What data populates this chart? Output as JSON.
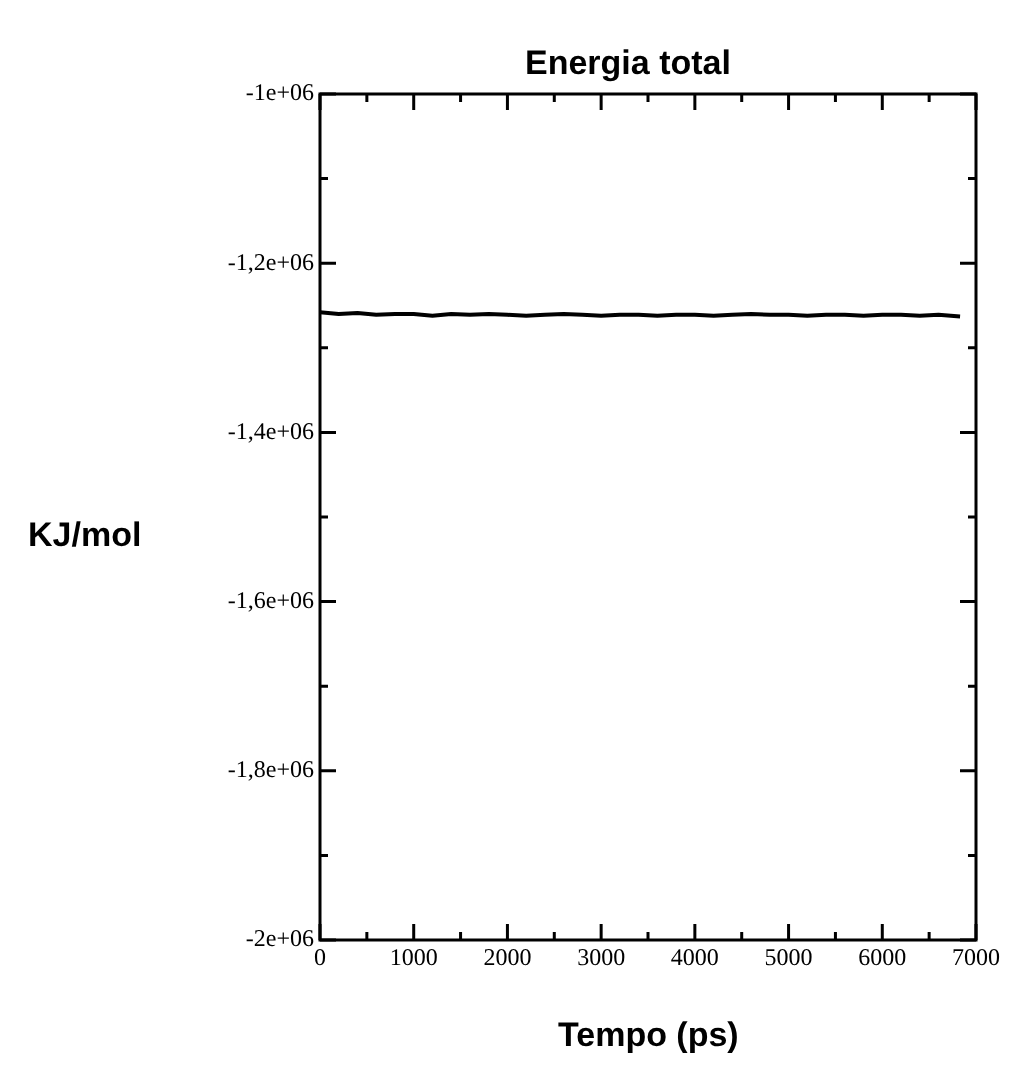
{
  "chart_data": {
    "type": "line",
    "title": "Energia total",
    "xlabel": "Tempo (ps)",
    "ylabel": "KJ/mol",
    "x": [
      0,
      200,
      400,
      600,
      800,
      1000,
      1200,
      1400,
      1600,
      1800,
      2000,
      2200,
      2400,
      2600,
      2800,
      3000,
      3200,
      3400,
      3600,
      3800,
      4000,
      4200,
      4400,
      4600,
      4800,
      5000,
      5200,
      5400,
      5600,
      5800,
      6000,
      6200,
      6400,
      6600,
      6830
    ],
    "series": [
      {
        "color": "#000000",
        "values": [
          -1258000,
          -1260000,
          -1259000,
          -1261000,
          -1260000,
          -1260000,
          -1262000,
          -1260000,
          -1261000,
          -1260000,
          -1261000,
          -1262000,
          -1261000,
          -1260000,
          -1261000,
          -1262000,
          -1261000,
          -1261000,
          -1262000,
          -1261000,
          -1261000,
          -1262000,
          -1261000,
          -1260000,
          -1261000,
          -1261000,
          -1262000,
          -1261000,
          -1261000,
          -1262000,
          -1261000,
          -1261000,
          -1262000,
          -1261000,
          -1263000
        ]
      }
    ],
    "xlim": [
      0,
      7000
    ],
    "xticks": [
      0,
      1000,
      2000,
      3000,
      4000,
      5000,
      6000,
      7000
    ],
    "ylim": [
      -2000000,
      -1000000
    ],
    "yticks": [
      {
        "value": -2000000,
        "label": "-2e+06"
      },
      {
        "value": -1800000,
        "label": "-1,8e+06"
      },
      {
        "value": -1600000,
        "label": "-1,6e+06"
      },
      {
        "value": -1400000,
        "label": "-1,4e+06"
      },
      {
        "value": -1200000,
        "label": "-1,2e+06"
      },
      {
        "value": -1000000,
        "label": "-1e+06"
      }
    ],
    "grid": false,
    "legend": false,
    "marker": "none",
    "line_style": "solid"
  }
}
